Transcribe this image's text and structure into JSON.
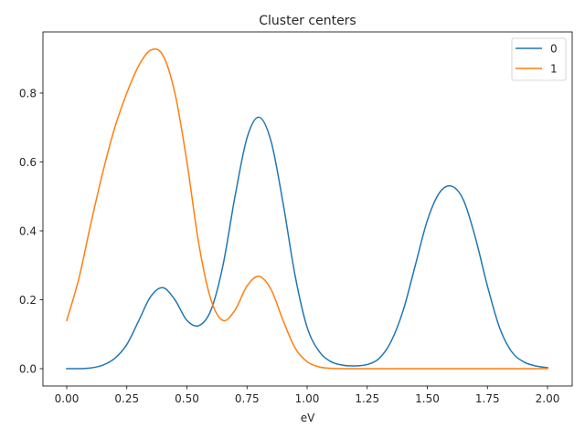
{
  "chart_data": {
    "type": "line",
    "title": "Cluster centers",
    "xlabel": "eV",
    "ylabel": "",
    "xlim": [
      -0.1,
      2.1
    ],
    "ylim": [
      -0.05,
      0.98
    ],
    "xticks": [
      0.0,
      0.25,
      0.5,
      0.75,
      1.0,
      1.25,
      1.5,
      1.75,
      2.0
    ],
    "xtick_labels": [
      "0.00",
      "0.25",
      "0.50",
      "0.75",
      "1.00",
      "1.25",
      "1.50",
      "1.75",
      "2.00"
    ],
    "yticks": [
      0.0,
      0.2,
      0.4,
      0.6,
      0.8
    ],
    "ytick_labels": [
      "0.0",
      "0.2",
      "0.4",
      "0.6",
      "0.8"
    ],
    "grid": false,
    "legend_position": "upper right",
    "x": [
      0.0,
      0.05,
      0.1,
      0.15,
      0.2,
      0.25,
      0.3,
      0.35,
      0.4,
      0.45,
      0.5,
      0.55,
      0.6,
      0.65,
      0.7,
      0.75,
      0.8,
      0.85,
      0.9,
      0.95,
      1.0,
      1.05,
      1.1,
      1.15,
      1.2,
      1.25,
      1.3,
      1.35,
      1.4,
      1.45,
      1.5,
      1.55,
      1.6,
      1.65,
      1.7,
      1.75,
      1.8,
      1.85,
      1.9,
      1.95,
      2.0
    ],
    "series": [
      {
        "name": "0",
        "color": "#1f77b4",
        "values": [
          0.0,
          0.0,
          0.002,
          0.01,
          0.03,
          0.07,
          0.14,
          0.21,
          0.235,
          0.2,
          0.14,
          0.125,
          0.17,
          0.3,
          0.5,
          0.67,
          0.73,
          0.66,
          0.48,
          0.27,
          0.12,
          0.05,
          0.02,
          0.01,
          0.008,
          0.012,
          0.03,
          0.08,
          0.17,
          0.3,
          0.43,
          0.51,
          0.53,
          0.49,
          0.38,
          0.24,
          0.12,
          0.05,
          0.02,
          0.008,
          0.003
        ]
      },
      {
        "name": "1",
        "color": "#ff7f0e",
        "values": [
          0.14,
          0.26,
          0.42,
          0.57,
          0.7,
          0.8,
          0.88,
          0.925,
          0.91,
          0.8,
          0.6,
          0.36,
          0.2,
          0.14,
          0.17,
          0.24,
          0.268,
          0.23,
          0.14,
          0.06,
          0.02,
          0.005,
          0.001,
          0.0,
          0.0,
          0.0,
          0.0,
          0.0,
          0.0,
          0.0,
          0.0,
          0.0,
          0.0,
          0.0,
          0.0,
          0.0,
          0.0,
          0.0,
          0.0,
          0.0,
          0.0
        ]
      }
    ]
  },
  "legend": {
    "items": [
      {
        "label": "0",
        "color": "#1f77b4"
      },
      {
        "label": "1",
        "color": "#ff7f0e"
      }
    ]
  }
}
